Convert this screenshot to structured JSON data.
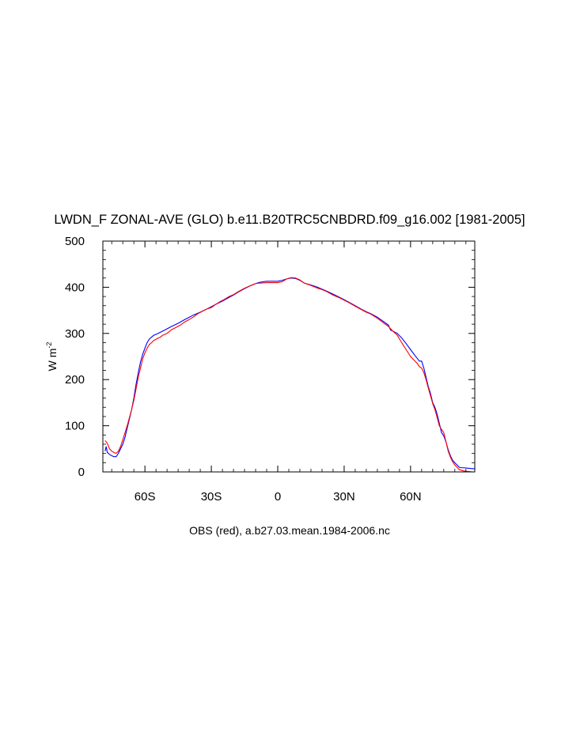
{
  "chart_data": {
    "type": "line",
    "title": "LWDN_F ZONAL-AVE (GLO) b.e11.B20TRC5CNBDRD.f09_g16.002 [1981-2005]",
    "xlabel": "OBS (red), a.b27.03.mean.1984-2006.nc",
    "ylabel": "W m",
    "ylabel_sup": "-2",
    "xlim": [
      -79,
      89
    ],
    "ylim": [
      0,
      500
    ],
    "x_ticks": [
      {
        "value": -60,
        "label": "60S"
      },
      {
        "value": -30,
        "label": "30S"
      },
      {
        "value": 0,
        "label": "0"
      },
      {
        "value": 30,
        "label": "30N"
      },
      {
        "value": 60,
        "label": "60N"
      }
    ],
    "y_ticks": [
      {
        "value": 0,
        "label": "0"
      },
      {
        "value": 100,
        "label": "100"
      },
      {
        "value": 200,
        "label": "200"
      },
      {
        "value": 300,
        "label": "300"
      },
      {
        "value": 400,
        "label": "400"
      },
      {
        "value": 500,
        "label": "500"
      }
    ],
    "grid": false,
    "legend": "none",
    "series": [
      {
        "color": "#0000ff",
        "x": [
          -78,
          -77.5,
          -77,
          -76,
          -75,
          -74,
          -73,
          -72,
          -71,
          -70,
          -69,
          -68,
          -67,
          -66,
          -65,
          -64,
          -63,
          -62,
          -61,
          -60,
          -59,
          -58,
          -57,
          -56,
          -55,
          -54,
          -52,
          -50,
          -48,
          -45,
          -42,
          -40,
          -38,
          -35,
          -32,
          -30,
          -28,
          -25,
          -22,
          -20,
          -18,
          -15,
          -12,
          -10,
          -8,
          -5,
          -2,
          0,
          2,
          4,
          6,
          8,
          10,
          12,
          15,
          18,
          20,
          22,
          25,
          28,
          30,
          32,
          35,
          38,
          40,
          42,
          45,
          48,
          50,
          51,
          52,
          54,
          56,
          58,
          60,
          62,
          63,
          64,
          65,
          66,
          67,
          68,
          69,
          70,
          71,
          72,
          73,
          74,
          75,
          76,
          77,
          78,
          79,
          80,
          81,
          82,
          83,
          84,
          86,
          88,
          89
        ],
        "y": [
          45,
          55,
          42,
          38,
          35,
          33,
          33,
          40,
          50,
          60,
          75,
          95,
          115,
          135,
          160,
          190,
          215,
          238,
          255,
          268,
          280,
          288,
          292,
          296,
          298,
          300,
          305,
          310,
          315,
          322,
          330,
          335,
          340,
          346,
          353,
          358,
          363,
          370,
          378,
          383,
          389,
          397,
          404,
          408,
          411,
          413,
          413,
          413,
          415,
          418,
          420,
          419,
          415,
          409,
          405,
          400,
          396,
          392,
          385,
          378,
          373,
          368,
          360,
          352,
          347,
          343,
          335,
          325,
          318,
          307,
          305,
          300,
          290,
          278,
          265,
          252,
          246,
          240,
          240,
          225,
          205,
          185,
          170,
          150,
          140,
          125,
          105,
          85,
          78,
          65,
          48,
          35,
          25,
          20,
          15,
          10,
          9,
          9,
          8,
          7,
          7
        ]
      },
      {
        "color": "#ff0000",
        "x": [
          -78,
          -77,
          -76,
          -75,
          -74,
          -73,
          -72,
          -71,
          -70,
          -69,
          -68,
          -67,
          -66,
          -65,
          -64,
          -63,
          -62,
          -61,
          -60,
          -59,
          -58,
          -57,
          -56,
          -55,
          -54,
          -53,
          -52,
          -51,
          -50,
          -48,
          -46,
          -44,
          -42,
          -40,
          -38,
          -36,
          -34,
          -32,
          -30,
          -28,
          -26,
          -24,
          -22,
          -20,
          -18,
          -15,
          -12,
          -10,
          -8,
          -5,
          -2,
          0,
          2,
          4,
          6,
          8,
          10,
          12,
          15,
          18,
          20,
          22,
          25,
          28,
          30,
          32,
          35,
          38,
          40,
          42,
          45,
          48,
          50,
          52,
          54,
          56,
          58,
          60,
          62,
          63,
          64,
          65,
          66,
          67,
          68,
          69,
          70,
          71,
          72,
          73,
          74,
          75,
          76,
          77,
          78,
          79,
          80,
          81,
          82,
          84,
          86,
          88,
          89
        ],
        "y": [
          68,
          62,
          50,
          45,
          42,
          40,
          45,
          55,
          70,
          85,
          100,
          118,
          135,
          155,
          180,
          205,
          225,
          245,
          258,
          268,
          276,
          280,
          285,
          287,
          290,
          292,
          296,
          298,
          300,
          308,
          313,
          318,
          325,
          330,
          336,
          343,
          348,
          353,
          356,
          363,
          369,
          374,
          380,
          384,
          390,
          398,
          404,
          408,
          409,
          410,
          410,
          410,
          412,
          418,
          421,
          420,
          416,
          409,
          404,
          398,
          395,
          391,
          383,
          377,
          372,
          367,
          359,
          351,
          346,
          342,
          333,
          322,
          315,
          305,
          296,
          280,
          265,
          250,
          240,
          235,
          228,
          225,
          215,
          200,
          182,
          165,
          148,
          135,
          118,
          100,
          92,
          85,
          65,
          45,
          32,
          22,
          15,
          10,
          5,
          2,
          1,
          0,
          0
        ]
      }
    ]
  }
}
